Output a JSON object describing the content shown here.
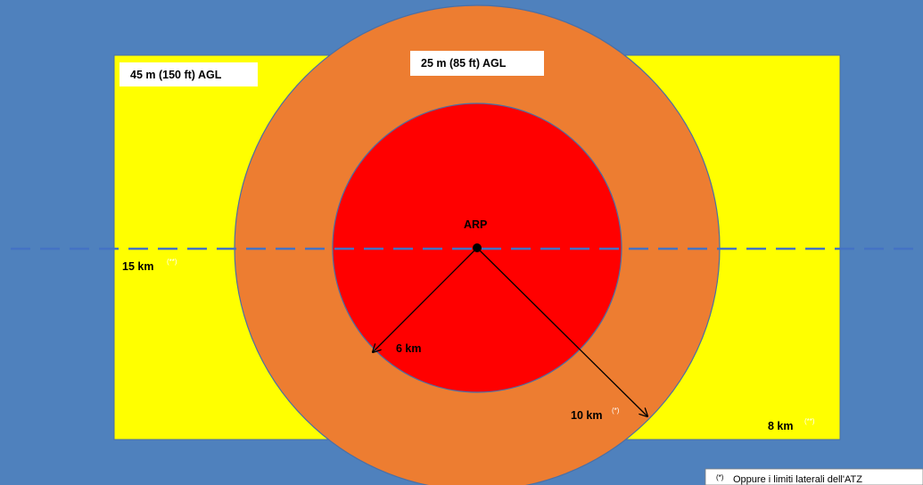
{
  "labels": {
    "zone_yellow": "45 m (150 ft) AGL",
    "zone_orange": "25 m (85 ft) AGL",
    "center": "ARP",
    "radius_inner": "6 km",
    "radius_outer": "10 km",
    "outer_marker": "(*)",
    "length": "15 km",
    "length_marker": "(**)",
    "width": "8 km",
    "width_marker": "(**)",
    "footnote_marker": "(*)",
    "footnote": "Oppure i limiti laterali dell'ATZ"
  },
  "colors": {
    "background": "#4f81bd",
    "yellow_zone": "#ffff00",
    "orange_zone": "#ed7d31",
    "red_zone": "#ff0000",
    "centerline": "#4472c4"
  }
}
